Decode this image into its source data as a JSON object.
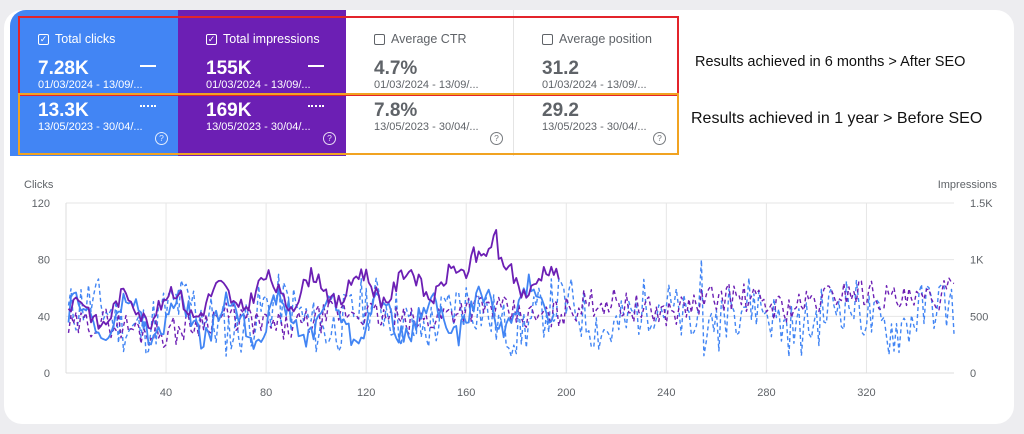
{
  "metrics": [
    {
      "key": "clicks",
      "label": "Total clicks",
      "checked": true,
      "value_recent": "7.28K",
      "date_recent": "01/03/2024 - 13/09/...",
      "value_prev": "13.3K",
      "date_prev": "13/05/2023 - 30/04/..."
    },
    {
      "key": "impressions",
      "label": "Total impressions",
      "checked": true,
      "value_recent": "155K",
      "date_recent": "01/03/2024 - 13/09/...",
      "value_prev": "169K",
      "date_prev": "13/05/2023 - 30/04/..."
    },
    {
      "key": "ctr",
      "label": "Average CTR",
      "checked": false,
      "value_recent": "4.7%",
      "date_recent": "01/03/2024 - 13/09/...",
      "value_prev": "7.8%",
      "date_prev": "13/05/2023 - 30/04/..."
    },
    {
      "key": "position",
      "label": "Average position",
      "checked": false,
      "value_recent": "31.2",
      "date_recent": "01/03/2024 - 13/09/...",
      "value_prev": "29.2",
      "date_prev": "13/05/2023 - 30/04/..."
    }
  ],
  "annotations": {
    "after": "Results achieved in 6 months > After SEO",
    "before": "Results achieved in 1 year > Before SEO"
  },
  "icons": {
    "checkbox_checked": "checkbox-checked-icon",
    "checkbox_empty": "checkbox-empty-icon",
    "help": "help-icon"
  },
  "colors": {
    "clicks": "#4285f4",
    "impressions": "#6c1fb4",
    "red_box": "#e3242b",
    "orange_box": "#f1a321"
  },
  "chart_data": {
    "type": "line",
    "left_axis_label": "Clicks",
    "right_axis_label": "Impressions",
    "left_ticks": [
      "120",
      "80",
      "40",
      "0"
    ],
    "right_ticks": [
      "1.5K",
      "1K",
      "500",
      "0"
    ],
    "x_ticks": [
      "40",
      "80",
      "120",
      "160",
      "200",
      "240",
      "280",
      "320"
    ],
    "x_range": [
      0,
      355
    ],
    "left_range": [
      0,
      120
    ],
    "right_range": [
      0,
      1500
    ],
    "grid": true,
    "series": []
  }
}
